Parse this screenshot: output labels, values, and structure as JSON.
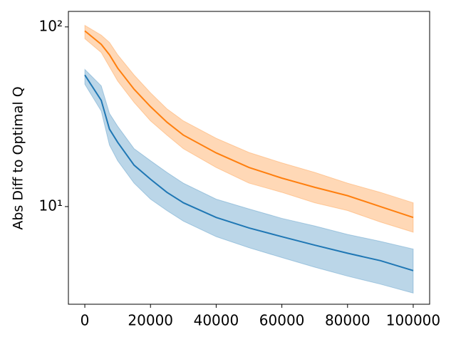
{
  "chart_data": {
    "type": "line",
    "y_label": "Abs Diff to Optimal Q",
    "x": [
      0,
      5000,
      7500,
      10000,
      15000,
      20000,
      25000,
      30000,
      40000,
      50000,
      60000,
      70000,
      80000,
      90000,
      100000
    ],
    "series": [
      {
        "color": "#1f77b4",
        "values": [
          54,
          39,
          27,
          22.8,
          17,
          14.2,
          12,
          10.5,
          8.7,
          7.6,
          6.8,
          6.1,
          5.5,
          5.0,
          4.4
        ],
        "lower": [
          48,
          34,
          22,
          18,
          13.5,
          11,
          9.5,
          8.3,
          6.8,
          5.9,
          5.2,
          4.6,
          4.1,
          3.7,
          3.3
        ],
        "upper": [
          58,
          47,
          33,
          28,
          21,
          18,
          15.5,
          13.5,
          11,
          9.7,
          8.6,
          7.8,
          7,
          6.4,
          5.8
        ]
      },
      {
        "color": "#ff7f0e",
        "values": [
          95,
          80,
          70,
          59,
          45,
          36,
          29.5,
          25,
          19.9,
          16.5,
          14.4,
          12.8,
          11.5,
          10,
          8.7
        ],
        "lower": [
          86,
          72,
          60,
          50,
          38,
          30,
          25,
          21,
          16.5,
          13.5,
          12,
          10.5,
          9.5,
          8.2,
          7.2
        ],
        "upper": [
          102,
          90,
          82,
          70,
          54,
          43,
          35,
          30,
          24,
          20,
          17.5,
          15.5,
          13.5,
          12,
          10.5
        ]
      }
    ],
    "xlim": [
      -5000,
      105000
    ],
    "xticks": [
      0,
      20000,
      40000,
      60000,
      80000,
      100000
    ],
    "ylim": [
      2.86,
      122
    ],
    "yticks": [
      {
        "value": 10,
        "label": "10¹"
      },
      {
        "value": 100,
        "label": "10²"
      }
    ],
    "ylog": true,
    "band_opacity": 0.3
  }
}
